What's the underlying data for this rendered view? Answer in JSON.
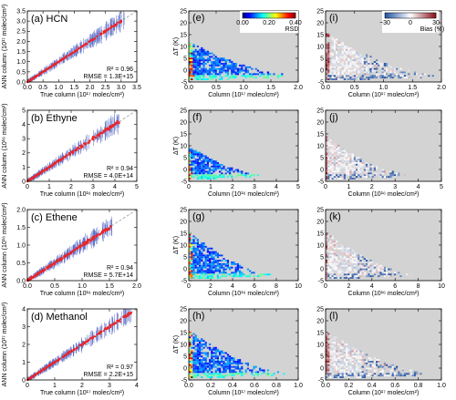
{
  "chart_data": {
    "type": "scatter",
    "layout_hint": "4 rows x 3 columns of panels; column 1 ANN vs true scatter, column 2 deltaT vs column colored by RSD, column 3 deltaT vs column colored by Bias",
    "colorbars": [
      {
        "label": "RSD",
        "ticks": [
          "0.00",
          "0.20",
          "0.40"
        ],
        "range": [
          0,
          0.4
        ],
        "cmap": "jet"
      },
      {
        "label": "Bias (%)",
        "ticks": [
          "−30",
          "0",
          "30"
        ],
        "range": [
          -30,
          30
        ],
        "cmap": "blue-white-red"
      }
    ],
    "rows": [
      {
        "scatter": {
          "label": "(a) HCN",
          "ylabel": "ANN column (10¹⁷ molec/cm²)",
          "xlabel": "True column (10¹⁷ molec/cm²)",
          "xlim": [
            0,
            3.5
          ],
          "ylim": [
            0,
            3.5
          ],
          "xticks": [
            "0.0",
            "0.5",
            "1.0",
            "1.5",
            "2.0",
            "2.5",
            "3.0",
            "3.5"
          ],
          "yticks": [
            "0.0",
            "0.5",
            "1.0",
            "1.5",
            "2.0",
            "2.5",
            "3.0",
            "3.5"
          ],
          "r2": "R² = 0.96",
          "rmse": "RMSE = 1.3E+15",
          "x_data_max": 3.1,
          "spread": 0.04
        },
        "rsd_panel": {
          "label": "(e)",
          "xlabel": "Column (10¹⁷ molec/cm²)",
          "ylabel": "ΔT (K)",
          "xlim": [
            0,
            2.0
          ],
          "xticks": [
            "0.0",
            "0.5",
            "1.0",
            "1.5",
            "2.0"
          ],
          "ylim": [
            -5,
            25
          ],
          "yticks": [
            "-5",
            "0",
            "5",
            "10",
            "15",
            "20",
            "25"
          ],
          "extent": 1.9,
          "tsize": 14
        },
        "bias_panel": {
          "label": "(i)",
          "xlabel": "Column (10¹⁷ molec/cm²)",
          "xlim": [
            0,
            2.0
          ],
          "xticks": [
            "0.0",
            "0.5",
            "1.0",
            "1.5",
            "2.0"
          ],
          "ylim": [
            -5,
            25
          ],
          "yticks": [
            "-5",
            "0",
            "5",
            "10",
            "15",
            "20",
            "25"
          ],
          "extent": 1.9,
          "tsize": 18
        }
      },
      {
        "scatter": {
          "label": "(b) Ethyne",
          "ylabel": "ANN column (10¹⁶ molec/cm²)",
          "xlabel": "True column (10¹⁶ molec/cm²)",
          "xlim": [
            0,
            5
          ],
          "ylim": [
            0,
            5
          ],
          "xticks": [
            "0",
            "1",
            "2",
            "3",
            "4",
            "5"
          ],
          "yticks": [
            "0",
            "1",
            "2",
            "3",
            "4",
            "5"
          ],
          "r2": "R² = 0.94",
          "rmse": "RMSE = 4.0E+14",
          "x_data_max": 4.2,
          "spread": 0.08
        },
        "rsd_panel": {
          "label": "(f)",
          "xlabel": "Column (10¹⁶ molec/cm²)",
          "ylabel": "ΔT (K)",
          "xlim": [
            0,
            5
          ],
          "xticks": [
            "0",
            "1",
            "2",
            "3",
            "4",
            "5"
          ],
          "ylim": [
            -5,
            25
          ],
          "yticks": [
            "-5",
            "0",
            "5",
            "10",
            "15",
            "20",
            "25"
          ],
          "extent": 3.3,
          "tsize": 12
        },
        "bias_panel": {
          "label": "(j)",
          "xlabel": "Column (10¹⁶ molec/cm²)",
          "xlim": [
            0,
            5
          ],
          "xticks": [
            "0",
            "1",
            "2",
            "3",
            "4",
            "5"
          ],
          "ylim": [
            -5,
            25
          ],
          "yticks": [
            "-5",
            "0",
            "5",
            "10",
            "15",
            "20",
            "25"
          ],
          "extent": 3.6,
          "tsize": 16
        }
      },
      {
        "scatter": {
          "label": "(c) Ethene",
          "ylabel": "ANN column (10¹⁶ molec/cm²)",
          "xlabel": "True column (10¹⁶ molec/cm²)",
          "xlim": [
            0,
            2.0
          ],
          "ylim": [
            0,
            2.0
          ],
          "xticks": [
            "0.0",
            "0.5",
            "1.0",
            "1.5",
            "2.0"
          ],
          "yticks": [
            "0.0",
            "0.5",
            "1.0",
            "1.5",
            "2.0"
          ],
          "r2": "R² = 0.94",
          "rmse": "RMSE = 5.7E+14",
          "x_data_max": 1.55,
          "spread": 0.06
        },
        "rsd_panel": {
          "label": "(g)",
          "xlabel": "Column (10¹⁶ molec/cm²)",
          "ylabel": "ΔT (K)",
          "xlim": [
            0,
            10
          ],
          "xticks": [
            "0",
            "2",
            "4",
            "6",
            "8",
            "10"
          ],
          "ylim": [
            -5,
            25
          ],
          "yticks": [
            "-5",
            "0",
            "5",
            "10",
            "15",
            "20",
            "25"
          ],
          "extent": 7.5,
          "tsize": 18
        },
        "bias_panel": {
          "label": "(k)",
          "xlabel": "Column (10¹⁶ molec/cm²)",
          "xlim": [
            0,
            10
          ],
          "xticks": [
            "0",
            "2",
            "4",
            "6",
            "8",
            "10"
          ],
          "ylim": [
            -5,
            25
          ],
          "yticks": [
            "-5",
            "0",
            "5",
            "10",
            "15",
            "20",
            "25"
          ],
          "extent": 7.5,
          "tsize": 18
        }
      },
      {
        "scatter": {
          "label": "(d) Methanol",
          "ylabel": "ANN column (10¹⁷ molec/cm²)",
          "xlabel": "True column (10¹⁷ molec/cm²)",
          "xlim": [
            0,
            4
          ],
          "ylim": [
            0,
            4
          ],
          "xticks": [
            "0",
            "1",
            "2",
            "3",
            "4"
          ],
          "yticks": [
            "0",
            "1",
            "2",
            "3",
            "4"
          ],
          "r2": "R² = 0.97",
          "rmse": "RMSE = 2.2E+15",
          "x_data_max": 3.8,
          "spread": 0.05
        },
        "rsd_panel": {
          "label": "(h)",
          "xlabel": "Column (10¹⁷ molec/cm²)",
          "ylabel": "ΔT (K)",
          "xlim": [
            0,
            1.0
          ],
          "xticks": [
            "0.0",
            "0.2",
            "0.4",
            "0.6",
            "0.8",
            "1.0"
          ],
          "ylim": [
            -5,
            25
          ],
          "yticks": [
            "-5",
            "0",
            "5",
            "10",
            "15",
            "20",
            "25"
          ],
          "extent": 0.9,
          "tsize": 18
        },
        "bias_panel": {
          "label": "(l)",
          "xlabel": "Column (10¹⁷ molec/cm²)",
          "xlim": [
            0,
            1.0
          ],
          "xticks": [
            "0.0",
            "0.2",
            "0.4",
            "0.6",
            "0.8",
            "1.0"
          ],
          "ylim": [
            -5,
            25
          ],
          "yticks": [
            "-5",
            "0",
            "5",
            "10",
            "15",
            "20",
            "25"
          ],
          "extent": 0.9,
          "tsize": 18
        }
      }
    ]
  },
  "colors": {
    "panel_gray": "#d3d3d3",
    "scatter_points": "#e8262a",
    "error_bars": "#5a6ec8",
    "one_to_one": "#9a9a9a"
  }
}
